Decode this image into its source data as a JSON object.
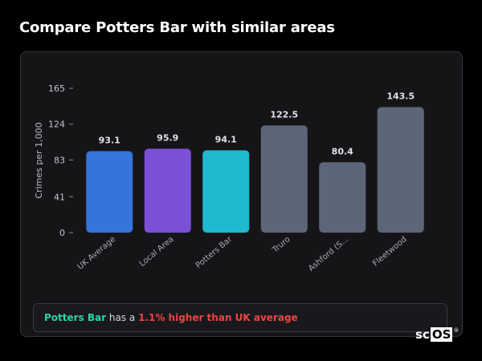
{
  "page": {
    "title": "Compare Potters Bar with similar areas"
  },
  "chart_data": {
    "type": "bar",
    "categories": [
      "UK Average",
      "Local Area",
      "Potters Bar",
      "Truro",
      "Ashford (S...",
      "Fleetwood"
    ],
    "values": [
      93.1,
      95.9,
      94.1,
      122.5,
      80.4,
      143.5
    ],
    "value_labels": [
      "93.1",
      "95.9",
      "94.1",
      "122.5",
      "80.4",
      "143.5"
    ],
    "colors": [
      "#3474db",
      "#7b4fd6",
      "#1fb8cf",
      "#5b6678",
      "#5b6678",
      "#5b6678"
    ],
    "ylabel": "Crimes per 1,000",
    "yticks": [
      "0",
      "41",
      "83",
      "124",
      "165"
    ],
    "ytick_values": [
      0,
      41,
      83,
      124,
      165
    ],
    "ylim": [
      0,
      165
    ],
    "grid": false,
    "legend": "none"
  },
  "summary": {
    "area_name": "Potters Bar",
    "connector": " has a ",
    "difference": "1.1% higher than UK average"
  },
  "logo": {
    "prefix": "sc",
    "boxed": "OS",
    "mark": "®"
  }
}
